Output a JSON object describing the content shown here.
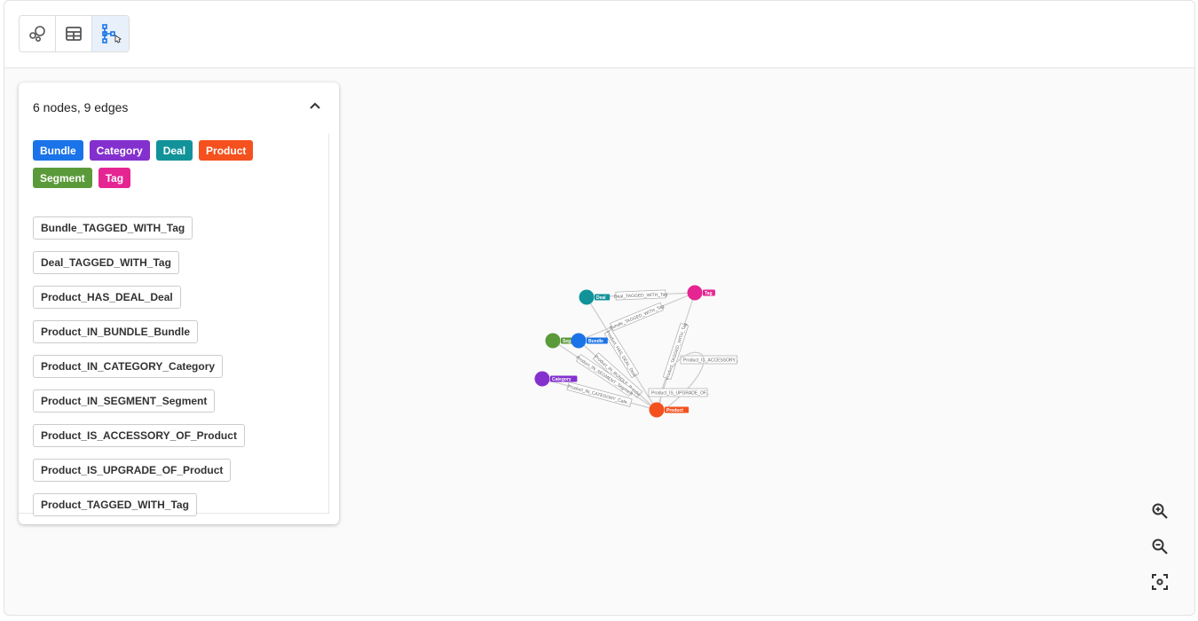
{
  "toolbar": {
    "views": [
      {
        "name": "graph-view",
        "icon": "bubbles-icon"
      },
      {
        "name": "table-view",
        "icon": "table-icon"
      },
      {
        "name": "schema-view",
        "icon": "schema-icon",
        "active": true
      }
    ]
  },
  "panel": {
    "summary": "6 nodes, 9 edges",
    "labels": [
      {
        "text": "Bundle",
        "color": "#1a73e8"
      },
      {
        "text": "Category",
        "color": "#8430ce"
      },
      {
        "text": "Deal",
        "color": "#12939a"
      },
      {
        "text": "Product",
        "color": "#f4511e"
      },
      {
        "text": "Segment",
        "color": "#5b9a3a"
      },
      {
        "text": "Tag",
        "color": "#e52592"
      }
    ],
    "relationships": [
      "Bundle_TAGGED_WITH_Tag",
      "Deal_TAGGED_WITH_Tag",
      "Product_HAS_DEAL_Deal",
      "Product_IN_BUNDLE_Bundle",
      "Product_IN_CATEGORY_Category",
      "Product_IN_SEGMENT_Segment",
      "Product_IS_ACCESSORY_OF_Product",
      "Product_IS_UPGRADE_OF_Product",
      "Product_TAGGED_WITH_Tag"
    ]
  },
  "graph": {
    "nodes": [
      {
        "id": "Deal",
        "color": "#12939a"
      },
      {
        "id": "Tag",
        "color": "#e52592"
      },
      {
        "id": "Segment",
        "color": "#5b9a3a"
      },
      {
        "id": "Bundle",
        "color": "#1a73e8"
      },
      {
        "id": "Category",
        "color": "#8430ce"
      },
      {
        "id": "Product",
        "color": "#f4511e"
      }
    ],
    "edges": [
      {
        "from": "Deal",
        "to": "Tag",
        "label": "Deal_TAGGED_WITH_Tag"
      },
      {
        "from": "Bundle",
        "to": "Tag",
        "label": "Bundle_TAGGED_WITH_Tag"
      },
      {
        "from": "Product",
        "to": "Tag",
        "label": "Product_TAGGED_WITH_Tag"
      },
      {
        "from": "Product",
        "to": "Deal",
        "label": "Product_HAS_DEAL_Deal"
      },
      {
        "from": "Product",
        "to": "Bundle",
        "label": "Product_IN_BUNDLE_Bundle"
      },
      {
        "from": "Product",
        "to": "Segment",
        "label": "Product_IN_SEGMENT_Segment"
      },
      {
        "from": "Product",
        "to": "Category",
        "label": "Product_IN_CATEGORY_Cate..."
      },
      {
        "from": "Product",
        "to": "Product",
        "label": "Product_IS_ACCESSORY..."
      },
      {
        "from": "Product",
        "to": "Product",
        "label": "Product_IS_UPGRADE_OF..."
      }
    ]
  },
  "controls": {
    "zoom_in": "zoom-in-icon",
    "zoom_out": "zoom-out-icon",
    "fit": "fit-icon"
  }
}
